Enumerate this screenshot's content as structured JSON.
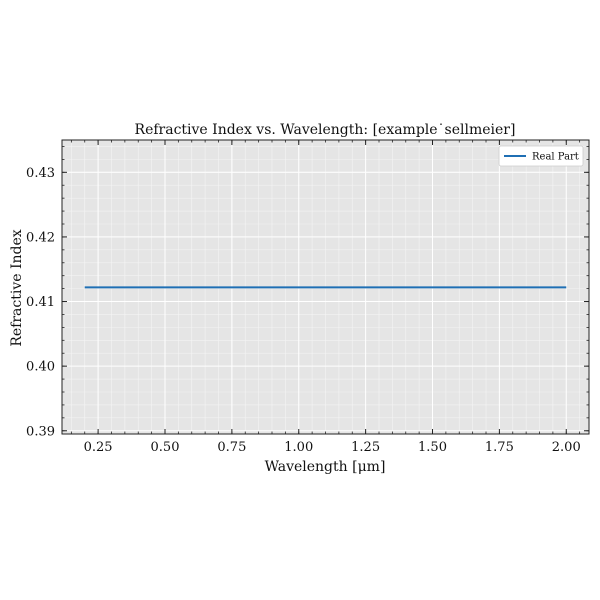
{
  "chart_data": {
    "type": "line",
    "title": "Refractive Index vs. Wavelength: [example˙sellmeier]",
    "xlabel": "Wavelength [μm]",
    "ylabel": "Refractive Index",
    "xlim": [
      0.115,
      2.085
    ],
    "ylim": [
      0.3895,
      0.435
    ],
    "xticks": [
      0.25,
      0.5,
      0.75,
      1.0,
      1.25,
      1.5,
      1.75,
      2.0
    ],
    "xtick_labels": [
      "0.25",
      "0.50",
      "0.75",
      "1.00",
      "1.25",
      "1.50",
      "1.75",
      "2.00"
    ],
    "yticks": [
      0.39,
      0.4,
      0.41,
      0.42,
      0.43
    ],
    "ytick_labels": [
      "0.39",
      "0.40",
      "0.41",
      "0.42",
      "0.43"
    ],
    "grid": true,
    "legend_position": "top-right",
    "background_color": "#e5e5e5",
    "series": [
      {
        "name": "Real Part",
        "color": "#1f6fb4",
        "x": [
          0.2,
          0.4,
          0.6,
          0.8,
          1.0,
          1.2,
          1.4,
          1.6,
          1.8,
          2.0
        ],
        "y": [
          0.4122,
          0.4122,
          0.4122,
          0.4122,
          0.4122,
          0.4122,
          0.4122,
          0.4122,
          0.4122,
          0.4122
        ]
      }
    ]
  }
}
